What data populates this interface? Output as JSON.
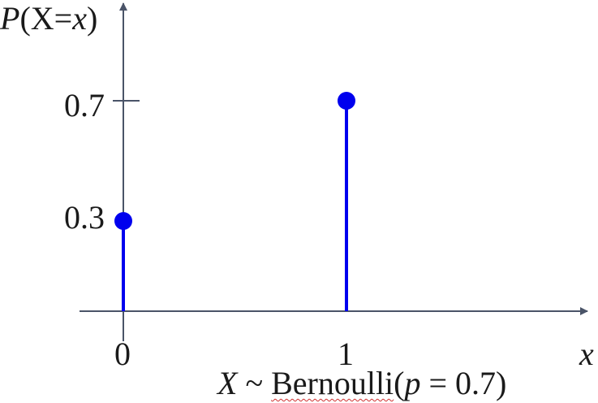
{
  "chart_data": {
    "type": "stem",
    "y_label_parts": [
      "P",
      "(X=",
      "x",
      ")"
    ],
    "x_label": "x",
    "x": [
      0,
      1
    ],
    "values": [
      0.3,
      0.7
    ],
    "x_ticks": [
      "0",
      "1"
    ],
    "y_ticks": [
      "0.3",
      "0.7"
    ],
    "caption_parts": [
      "X",
      " ~ ",
      "Bernoulli",
      "(",
      "p",
      " = 0.7)"
    ],
    "colors": {
      "axis": "#4a5468",
      "stem": "#0000ee"
    }
  }
}
